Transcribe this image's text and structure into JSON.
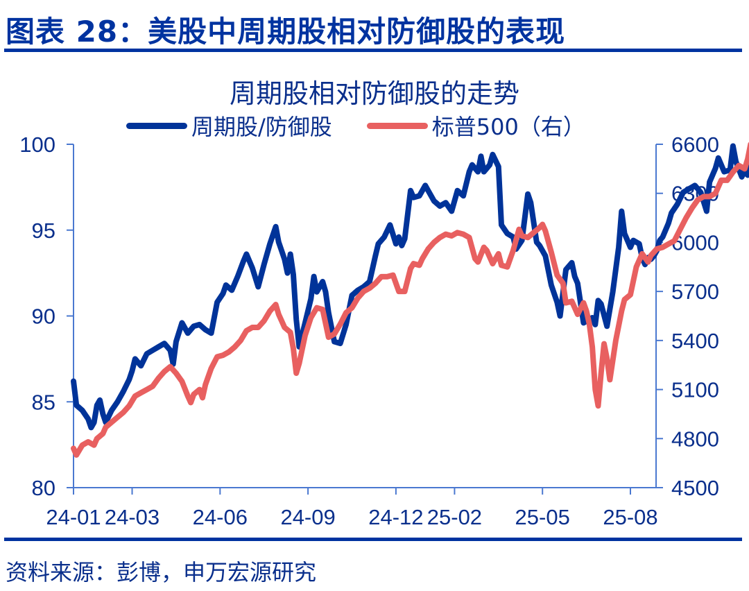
{
  "figure": {
    "title": "图表 28：美股中周期股相对防御股的表现",
    "source": "资料来源：彭博，申万宏源研究",
    "colors": {
      "title": "#0033a0",
      "axis": "#4a78d0",
      "text": "#0a2f8c"
    }
  },
  "chart_data": {
    "type": "line",
    "title": "周期股相对防御股的走势",
    "xlabel": "",
    "ylabel": "",
    "legend_position": "top",
    "grid": false,
    "x_tick_labels": [
      "24-01",
      "24-03",
      "24-06",
      "24-09",
      "24-12",
      "25-02",
      "25-05",
      "25-08"
    ],
    "y_left": {
      "range": [
        80,
        100
      ],
      "ticks": [
        "80",
        "85",
        "90",
        "95",
        "100"
      ]
    },
    "y_right": {
      "range": [
        4500,
        6600
      ],
      "ticks": [
        "4500",
        "4800",
        "5100",
        "5400",
        "5700",
        "6000",
        "6300",
        "6600"
      ]
    },
    "x_index_range": [
      0,
      20.3
    ],
    "x_index_note": "x measured in months since 2024-01 (0 = 24-01)",
    "series": [
      {
        "name": "周期股/防御股",
        "axis": "left",
        "color": "#003399",
        "points": [
          [
            0.0,
            86.2
          ],
          [
            0.1,
            84.8
          ],
          [
            0.3,
            84.5
          ],
          [
            0.5,
            84.0
          ],
          [
            0.6,
            83.5
          ],
          [
            0.7,
            83.8
          ],
          [
            0.8,
            84.8
          ],
          [
            0.9,
            85.1
          ],
          [
            1.0,
            84.3
          ],
          [
            1.1,
            83.8
          ],
          [
            1.3,
            84.5
          ],
          [
            1.5,
            85.0
          ],
          [
            1.7,
            85.6
          ],
          [
            1.9,
            86.3
          ],
          [
            2.0,
            86.8
          ],
          [
            2.1,
            87.5
          ],
          [
            2.3,
            87.1
          ],
          [
            2.5,
            87.8
          ],
          [
            2.7,
            88.0
          ],
          [
            2.9,
            88.2
          ],
          [
            3.1,
            88.4
          ],
          [
            3.3,
            88.0
          ],
          [
            3.4,
            87.2
          ],
          [
            3.5,
            88.5
          ],
          [
            3.7,
            89.6
          ],
          [
            3.9,
            89.0
          ],
          [
            4.1,
            89.4
          ],
          [
            4.3,
            89.5
          ],
          [
            4.5,
            89.2
          ],
          [
            4.7,
            89.0
          ],
          [
            4.9,
            90.8
          ],
          [
            5.1,
            91.3
          ],
          [
            5.2,
            91.8
          ],
          [
            5.4,
            91.5
          ],
          [
            5.6,
            92.3
          ],
          [
            5.8,
            93.2
          ],
          [
            5.9,
            93.6
          ],
          [
            6.1,
            92.8
          ],
          [
            6.3,
            91.7
          ],
          [
            6.5,
            93.0
          ],
          [
            6.7,
            94.2
          ],
          [
            6.8,
            94.7
          ],
          [
            6.9,
            95.2
          ],
          [
            7.0,
            94.3
          ],
          [
            7.1,
            93.8
          ],
          [
            7.2,
            93.3
          ],
          [
            7.3,
            92.5
          ],
          [
            7.4,
            93.6
          ],
          [
            7.5,
            92.4
          ],
          [
            7.6,
            89.8
          ],
          [
            7.7,
            88.2
          ],
          [
            7.9,
            89.6
          ],
          [
            8.1,
            91.0
          ],
          [
            8.2,
            92.3
          ],
          [
            8.3,
            91.4
          ],
          [
            8.5,
            92.0
          ],
          [
            8.6,
            91.4
          ],
          [
            8.7,
            90.2
          ],
          [
            8.9,
            88.5
          ],
          [
            9.1,
            88.4
          ],
          [
            9.3,
            89.5
          ],
          [
            9.5,
            91.2
          ],
          [
            9.7,
            91.5
          ],
          [
            9.9,
            91.7
          ],
          [
            10.1,
            92.0
          ],
          [
            10.3,
            93.5
          ],
          [
            10.4,
            94.2
          ],
          [
            10.6,
            94.6
          ],
          [
            10.8,
            95.3
          ],
          [
            11.0,
            94.2
          ],
          [
            11.1,
            94.6
          ],
          [
            11.2,
            94.1
          ],
          [
            11.3,
            94.5
          ],
          [
            11.5,
            97.3
          ],
          [
            11.6,
            96.9
          ],
          [
            11.8,
            97.0
          ],
          [
            12.0,
            97.6
          ],
          [
            12.1,
            97.3
          ],
          [
            12.3,
            96.7
          ],
          [
            12.5,
            96.4
          ],
          [
            12.7,
            96.6
          ],
          [
            12.9,
            96.1
          ],
          [
            13.1,
            97.3
          ],
          [
            13.3,
            97.0
          ],
          [
            13.5,
            98.4
          ],
          [
            13.6,
            98.8
          ],
          [
            13.8,
            98.4
          ],
          [
            13.9,
            99.3
          ],
          [
            14.0,
            98.4
          ],
          [
            14.2,
            98.8
          ],
          [
            14.3,
            99.4
          ],
          [
            14.5,
            98.7
          ],
          [
            14.6,
            95.3
          ],
          [
            14.8,
            94.8
          ],
          [
            15.0,
            94.6
          ],
          [
            15.1,
            93.9
          ],
          [
            15.3,
            94.4
          ],
          [
            15.5,
            97.1
          ],
          [
            15.6,
            96.6
          ],
          [
            15.8,
            94.3
          ],
          [
            15.9,
            94.1
          ],
          [
            16.1,
            93.5
          ],
          [
            16.3,
            91.8
          ],
          [
            16.5,
            90.8
          ],
          [
            16.6,
            90.0
          ],
          [
            16.8,
            92.7
          ],
          [
            17.0,
            93.1
          ],
          [
            17.1,
            92.3
          ],
          [
            17.2,
            91.9
          ],
          [
            17.4,
            89.6
          ],
          [
            17.5,
            89.7
          ],
          [
            17.7,
            89.9
          ],
          [
            17.8,
            89.5
          ],
          [
            17.9,
            90.9
          ],
          [
            18.0,
            90.7
          ],
          [
            18.2,
            89.4
          ],
          [
            18.4,
            91.4
          ],
          [
            18.6,
            94.0
          ],
          [
            18.7,
            96.1
          ],
          [
            18.8,
            94.8
          ],
          [
            19.0,
            94.0
          ],
          [
            19.1,
            94.4
          ],
          [
            19.3,
            94.2
          ],
          [
            19.4,
            93.4
          ],
          [
            19.5,
            93.0
          ],
          [
            19.6,
            93.4
          ],
          [
            19.7,
            93.3
          ],
          [
            19.8,
            93.5
          ],
          [
            19.9,
            93.8
          ],
          [
            20.0,
            94.4
          ],
          [
            20.1,
            94.6
          ],
          [
            20.3,
            95.4
          ],
          [
            20.4,
            96.0
          ],
          [
            20.6,
            96.5
          ],
          [
            20.8,
            97.2
          ],
          [
            21.0,
            97.4
          ],
          [
            21.2,
            97.6
          ],
          [
            21.4,
            97.2
          ],
          [
            21.6,
            96.1
          ],
          [
            21.7,
            97.8
          ],
          [
            21.9,
            98.6
          ],
          [
            22.0,
            99.2
          ],
          [
            22.2,
            98.4
          ],
          [
            22.4,
            98.5
          ],
          [
            22.5,
            99.9
          ],
          [
            22.6,
            99.0
          ],
          [
            22.8,
            98.1
          ],
          [
            22.9,
            98.5
          ],
          [
            23.0,
            98.2
          ],
          [
            23.1,
            98.7
          ]
        ]
      },
      {
        "name": "标普500（右）",
        "axis": "right",
        "color": "#e86060",
        "points": [
          [
            0.0,
            4740
          ],
          [
            0.1,
            4700
          ],
          [
            0.3,
            4760
          ],
          [
            0.5,
            4780
          ],
          [
            0.6,
            4770
          ],
          [
            0.7,
            4760
          ],
          [
            0.8,
            4800
          ],
          [
            1.0,
            4830
          ],
          [
            1.1,
            4870
          ],
          [
            1.3,
            4900
          ],
          [
            1.5,
            4930
          ],
          [
            1.7,
            4960
          ],
          [
            1.9,
            5000
          ],
          [
            2.0,
            5030
          ],
          [
            2.1,
            5060
          ],
          [
            2.3,
            5080
          ],
          [
            2.5,
            5100
          ],
          [
            2.7,
            5120
          ],
          [
            2.9,
            5170
          ],
          [
            3.1,
            5210
          ],
          [
            3.3,
            5240
          ],
          [
            3.4,
            5220
          ],
          [
            3.5,
            5200
          ],
          [
            3.7,
            5150
          ],
          [
            3.9,
            5060
          ],
          [
            4.0,
            5020
          ],
          [
            4.1,
            5070
          ],
          [
            4.3,
            5100
          ],
          [
            4.4,
            5050
          ],
          [
            4.5,
            5130
          ],
          [
            4.7,
            5230
          ],
          [
            4.9,
            5300
          ],
          [
            5.1,
            5310
          ],
          [
            5.3,
            5330
          ],
          [
            5.5,
            5360
          ],
          [
            5.7,
            5400
          ],
          [
            5.9,
            5460
          ],
          [
            6.1,
            5480
          ],
          [
            6.3,
            5480
          ],
          [
            6.5,
            5520
          ],
          [
            6.7,
            5580
          ],
          [
            6.9,
            5620
          ],
          [
            7.0,
            5560
          ],
          [
            7.1,
            5520
          ],
          [
            7.2,
            5480
          ],
          [
            7.4,
            5450
          ],
          [
            7.5,
            5350
          ],
          [
            7.6,
            5200
          ],
          [
            7.7,
            5260
          ],
          [
            7.9,
            5430
          ],
          [
            8.1,
            5540
          ],
          [
            8.3,
            5600
          ],
          [
            8.5,
            5590
          ],
          [
            8.7,
            5420
          ],
          [
            8.9,
            5440
          ],
          [
            9.1,
            5500
          ],
          [
            9.3,
            5570
          ],
          [
            9.5,
            5600
          ],
          [
            9.7,
            5660
          ],
          [
            9.9,
            5700
          ],
          [
            10.1,
            5720
          ],
          [
            10.3,
            5750
          ],
          [
            10.5,
            5790
          ],
          [
            10.7,
            5790
          ],
          [
            10.9,
            5800
          ],
          [
            11.1,
            5700
          ],
          [
            11.3,
            5700
          ],
          [
            11.5,
            5840
          ],
          [
            11.6,
            5870
          ],
          [
            11.8,
            5860
          ],
          [
            11.9,
            5900
          ],
          [
            12.1,
            5960
          ],
          [
            12.3,
            6000
          ],
          [
            12.5,
            6030
          ],
          [
            12.7,
            6050
          ],
          [
            12.9,
            6040
          ],
          [
            13.1,
            6060
          ],
          [
            13.3,
            6050
          ],
          [
            13.5,
            6030
          ],
          [
            13.7,
            5900
          ],
          [
            13.8,
            5880
          ],
          [
            14.0,
            5970
          ],
          [
            14.1,
            5950
          ],
          [
            14.3,
            5870
          ],
          [
            14.5,
            5930
          ],
          [
            14.6,
            5860
          ],
          [
            14.8,
            5850
          ],
          [
            15.0,
            5950
          ],
          [
            15.2,
            6080
          ],
          [
            15.3,
            6040
          ],
          [
            15.5,
            6030
          ],
          [
            15.7,
            6060
          ],
          [
            15.9,
            6090
          ],
          [
            16.0,
            6110
          ],
          [
            16.1,
            6070
          ],
          [
            16.3,
            5940
          ],
          [
            16.5,
            5800
          ],
          [
            16.7,
            5750
          ],
          [
            16.8,
            5630
          ],
          [
            17.0,
            5640
          ],
          [
            17.2,
            5560
          ],
          [
            17.4,
            5630
          ],
          [
            17.5,
            5580
          ],
          [
            17.6,
            5500
          ],
          [
            17.7,
            5360
          ],
          [
            17.8,
            5100
          ],
          [
            17.9,
            5000
          ],
          [
            18.0,
            5200
          ],
          [
            18.1,
            5380
          ],
          [
            18.2,
            5290
          ],
          [
            18.3,
            5160
          ],
          [
            18.5,
            5400
          ],
          [
            18.7,
            5580
          ],
          [
            18.8,
            5650
          ],
          [
            19.0,
            5680
          ],
          [
            19.2,
            5850
          ],
          [
            19.4,
            5930
          ],
          [
            19.6,
            5880
          ],
          [
            19.7,
            5920
          ],
          [
            19.9,
            5960
          ],
          [
            20.1,
            5970
          ],
          [
            20.3,
            5990
          ],
          [
            20.5,
            6010
          ],
          [
            20.7,
            6080
          ],
          [
            20.9,
            6150
          ],
          [
            21.1,
            6210
          ],
          [
            21.3,
            6260
          ],
          [
            21.5,
            6280
          ],
          [
            21.7,
            6280
          ],
          [
            21.9,
            6300
          ],
          [
            22.1,
            6380
          ],
          [
            22.3,
            6380
          ],
          [
            22.5,
            6430
          ],
          [
            22.7,
            6470
          ],
          [
            22.9,
            6450
          ],
          [
            23.0,
            6510
          ],
          [
            23.1,
            6600
          ]
        ]
      }
    ]
  }
}
